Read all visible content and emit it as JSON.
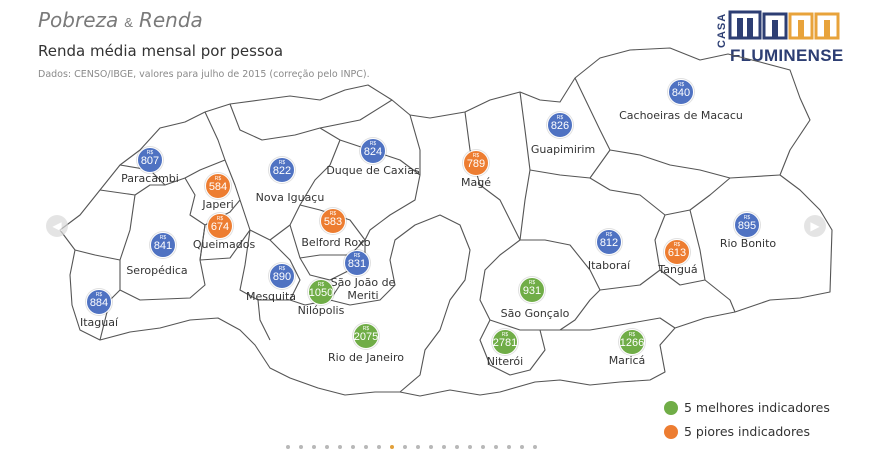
{
  "header": {
    "title_part1": "Pobreza",
    "title_amp": "&",
    "title_part2": "Renda",
    "subtitle": "Renda média mensal por pessoa",
    "source": "Dados: CENSO/IBGE, valores para julho de 2015 (correção pelo INPC)."
  },
  "logo": {
    "line1": "CASA",
    "line2": "FLUMINENSE",
    "color": "#2d3e73"
  },
  "currency": "R$",
  "colors": {
    "top": "#70ad47",
    "bottom": "#ed7d31",
    "neutral": "#4f72c2"
  },
  "municipalities": [
    {
      "name": "Paracambi",
      "value": "807",
      "class": "neutral"
    },
    {
      "name": "Japeri",
      "value": "584",
      "class": "bottom"
    },
    {
      "name": "Nova Iguaçu",
      "value": "822",
      "class": "neutral"
    },
    {
      "name": "Duque de Caxias",
      "value": "824",
      "class": "neutral"
    },
    {
      "name": "Magé",
      "value": "789",
      "class": "bottom"
    },
    {
      "name": "Guapimirim",
      "value": "826",
      "class": "neutral"
    },
    {
      "name": "Cachoeiras de Macacu",
      "value": "840",
      "class": "neutral"
    },
    {
      "name": "Queimados",
      "value": "674",
      "class": "bottom"
    },
    {
      "name": "Belford Roxo",
      "value": "583",
      "class": "bottom"
    },
    {
      "name": "Seropédica",
      "value": "841",
      "class": "neutral"
    },
    {
      "name": "Itaboraí",
      "value": "812",
      "class": "neutral"
    },
    {
      "name": "Tanguá",
      "value": "613",
      "class": "bottom"
    },
    {
      "name": "Rio Bonito",
      "value": "895",
      "class": "neutral"
    },
    {
      "name": "Mesquita",
      "value": "890",
      "class": "neutral"
    },
    {
      "name": "São João de\nMeriti",
      "value": "831",
      "class": "neutral"
    },
    {
      "name": "Nilópolis",
      "value": "1050",
      "class": "top"
    },
    {
      "name": "Itaguaí",
      "value": "884",
      "class": "neutral"
    },
    {
      "name": "São Gonçalo",
      "value": "931",
      "class": "top"
    },
    {
      "name": "Rio de Janeiro",
      "value": "2075",
      "class": "top"
    },
    {
      "name": "Niterói",
      "value": "2781",
      "class": "top"
    },
    {
      "name": "Maricá",
      "value": "1266",
      "class": "top"
    }
  ],
  "legend": [
    {
      "label": "5 melhores indicadores",
      "color": "#70ad47"
    },
    {
      "label": "5 piores indicadores",
      "color": "#ed7d31"
    }
  ],
  "pagination": {
    "total": 20,
    "active": 8
  }
}
